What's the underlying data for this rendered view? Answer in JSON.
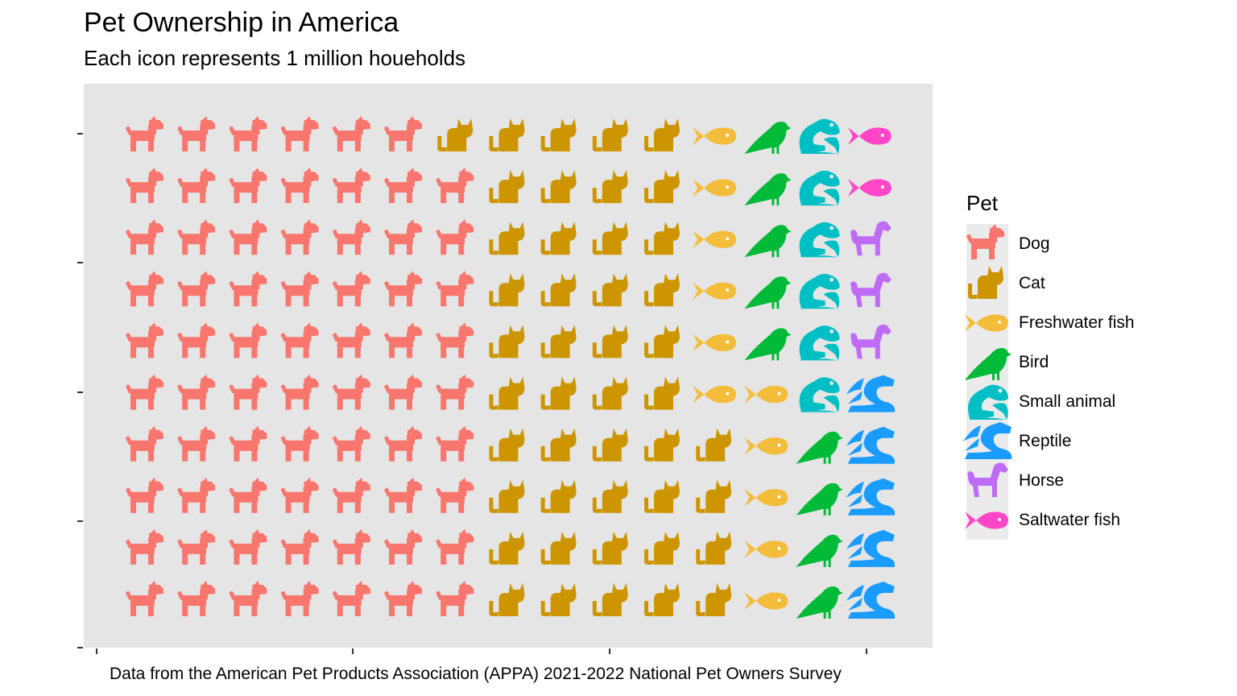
{
  "title": "Pet Ownership in America",
  "subtitle": "Each icon represents 1 million houeholds",
  "caption": "Data from the American Pet Products Association (APPA) 2021-2022 National Pet Owners Survey",
  "legend": {
    "title": "Pet",
    "items": [
      "Dog",
      "Cat",
      "Freshwater fish",
      "Bird",
      "Small animal",
      "Reptile",
      "Horse",
      "Saltwater fish"
    ]
  },
  "colors": {
    "panel_background": "#e5e5e5",
    "legend_key_background": "#ebebeb",
    "Dog": "#F8766D",
    "Cat": "#CD9600",
    "Freshwater fish": "#F3BC3A",
    "Bird": "#00BA38",
    "Small animal": "#00BFC4",
    "Reptile": "#1A9BFF",
    "Horse": "#BE6BF5",
    "Saltwater fish": "#FF45C8"
  },
  "chart_data": {
    "type": "waffle",
    "unit": "1 million households",
    "title": "Pet Ownership in America",
    "subtitle": "Each icon represents 1 million houeholds",
    "grid": {
      "rows": 10,
      "columns": 15
    },
    "fill_order": "column-wise, bottom to top",
    "series": [
      {
        "name": "Dog",
        "icon": "dog-icon",
        "value": 69
      },
      {
        "name": "Cat",
        "icon": "cat-icon",
        "value": 45
      },
      {
        "name": "Freshwater fish",
        "icon": "fish-icon",
        "value": 11
      },
      {
        "name": "Bird",
        "icon": "bird-icon",
        "value": 9
      },
      {
        "name": "Small animal",
        "icon": "frog-icon",
        "value": 6
      },
      {
        "name": "Reptile",
        "icon": "dragon-icon",
        "value": 5
      },
      {
        "name": "Horse",
        "icon": "horse-icon",
        "value": 3
      },
      {
        "name": "Saltwater fish",
        "icon": "fish-icon",
        "value": 2
      }
    ],
    "axis_labels": {
      "x": "",
      "y": ""
    },
    "tick_labels": {
      "x": [],
      "y": []
    },
    "grid_lines": false,
    "legend_position": "right"
  }
}
